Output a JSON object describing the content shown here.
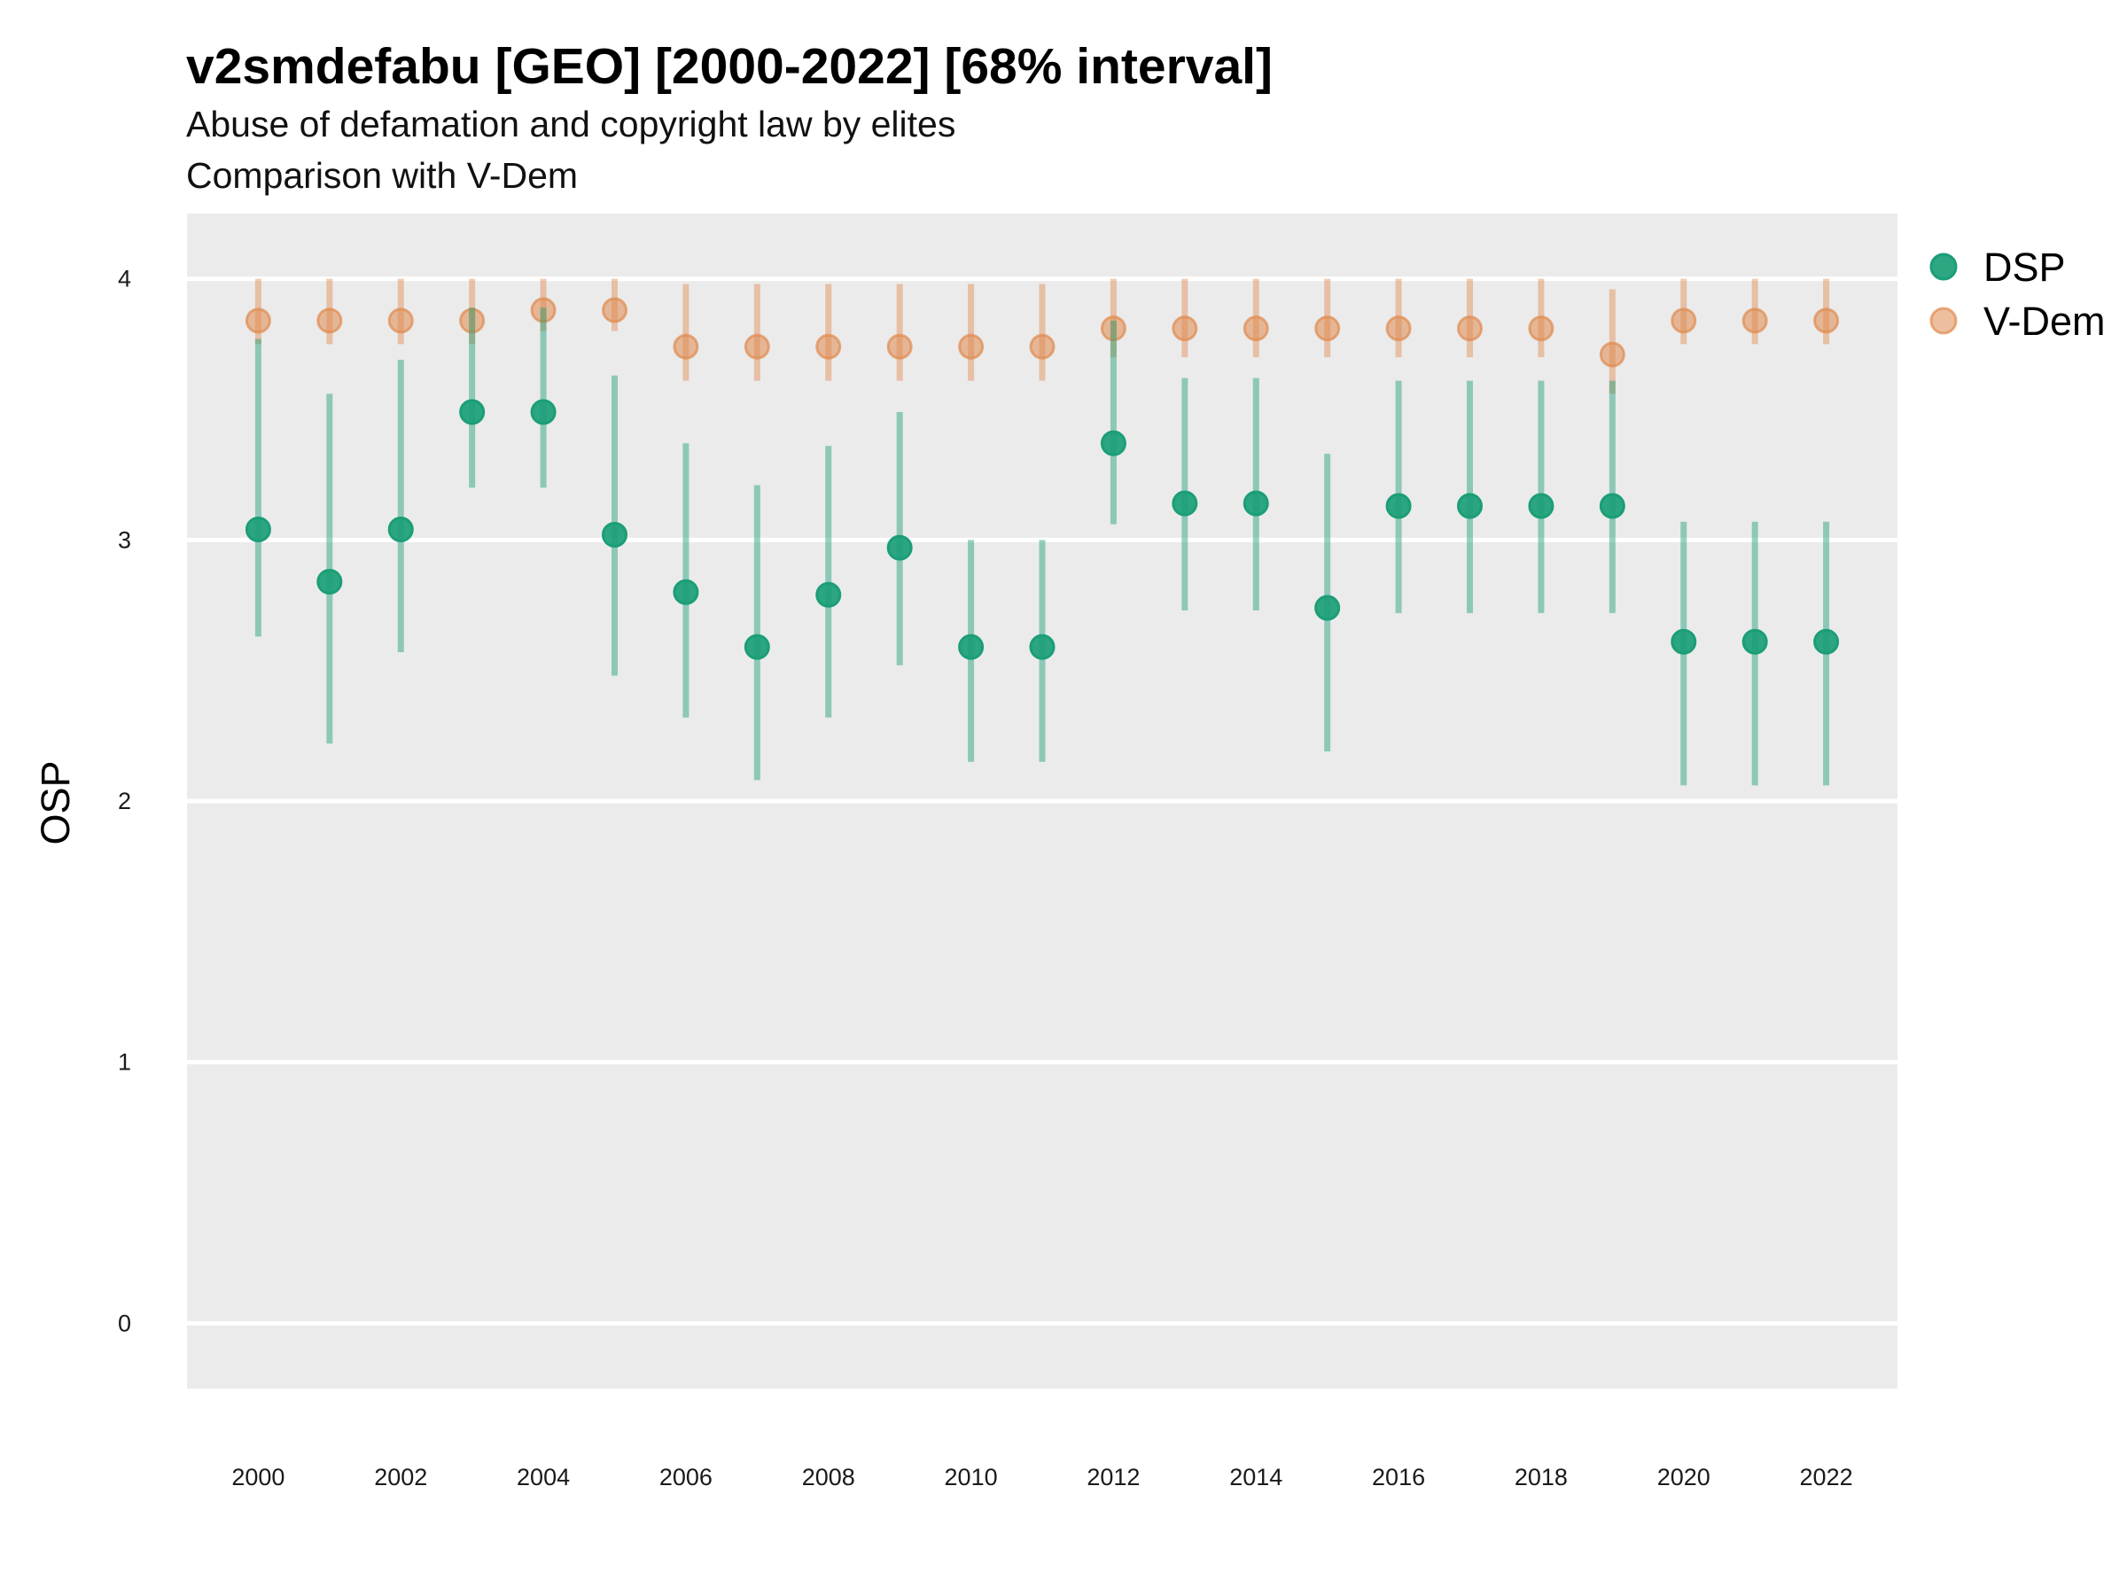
{
  "chart_data": {
    "type": "scatter",
    "title": "v2smdefabu [GEO] [2000-2022] [68% interval]",
    "subtitle": "Abuse of defamation and copyright law by elites",
    "caption": "Comparison with V-Dem",
    "xlabel": "",
    "ylabel": "OSP",
    "xlim": [
      1999,
      2023
    ],
    "ylim": [
      -0.25,
      4.25
    ],
    "x_ticks": [
      2000,
      2002,
      2004,
      2006,
      2008,
      2010,
      2012,
      2014,
      2016,
      2018,
      2020,
      2022
    ],
    "y_ticks": [
      0,
      1,
      2,
      3,
      4
    ],
    "grid": true,
    "legend_position": "top-right",
    "colors": {
      "panel_background": "#ebebeb",
      "grid_line": "#ffffff",
      "DSP": "#1b9e77",
      "V-Dem": "#e08a4f"
    },
    "series": [
      {
        "name": "DSP",
        "x": [
          2000,
          2001,
          2002,
          2003,
          2004,
          2005,
          2006,
          2007,
          2008,
          2009,
          2010,
          2011,
          2012,
          2013,
          2014,
          2015,
          2016,
          2017,
          2018,
          2019,
          2020,
          2021,
          2022
        ],
        "y": [
          3.04,
          2.84,
          3.04,
          3.49,
          3.49,
          3.02,
          2.8,
          2.59,
          2.79,
          2.97,
          2.59,
          2.59,
          3.37,
          3.14,
          3.14,
          2.74,
          3.13,
          3.13,
          3.13,
          3.13,
          2.61,
          2.61,
          2.61
        ],
        "lower": [
          2.63,
          2.22,
          2.57,
          3.2,
          3.2,
          2.48,
          2.32,
          2.08,
          2.32,
          2.52,
          2.15,
          2.15,
          3.06,
          2.73,
          2.73,
          2.19,
          2.72,
          2.72,
          2.72,
          2.72,
          2.06,
          2.06,
          2.06
        ],
        "upper": [
          3.77,
          3.56,
          3.69,
          3.89,
          3.89,
          3.63,
          3.37,
          3.21,
          3.36,
          3.49,
          3.0,
          3.0,
          3.84,
          3.62,
          3.62,
          3.33,
          3.61,
          3.61,
          3.61,
          3.61,
          3.07,
          3.07,
          3.07
        ]
      },
      {
        "name": "V-Dem",
        "x": [
          2000,
          2001,
          2002,
          2003,
          2004,
          2005,
          2006,
          2007,
          2008,
          2009,
          2010,
          2011,
          2012,
          2013,
          2014,
          2015,
          2016,
          2017,
          2018,
          2019,
          2020,
          2021,
          2022
        ],
        "y": [
          3.84,
          3.84,
          3.84,
          3.84,
          3.88,
          3.88,
          3.74,
          3.74,
          3.74,
          3.74,
          3.74,
          3.74,
          3.81,
          3.81,
          3.81,
          3.81,
          3.81,
          3.81,
          3.81,
          3.71,
          3.84,
          3.84,
          3.84
        ],
        "lower": [
          3.75,
          3.75,
          3.75,
          3.75,
          3.8,
          3.8,
          3.61,
          3.61,
          3.61,
          3.61,
          3.61,
          3.61,
          3.7,
          3.7,
          3.7,
          3.7,
          3.7,
          3.7,
          3.7,
          3.56,
          3.75,
          3.75,
          3.75
        ],
        "upper": [
          4.0,
          4.0,
          4.0,
          4.0,
          4.0,
          4.0,
          3.98,
          3.98,
          3.98,
          3.98,
          3.98,
          3.98,
          4.0,
          4.0,
          4.0,
          4.0,
          4.0,
          4.0,
          4.0,
          3.96,
          4.0,
          4.0,
          4.0
        ]
      }
    ]
  }
}
